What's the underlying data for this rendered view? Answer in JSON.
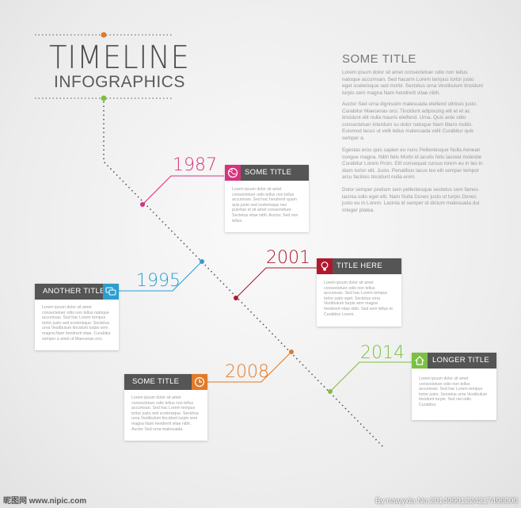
{
  "header": {
    "title": "TIMELINE",
    "subtitle": "INFOGRAPHICS"
  },
  "side": {
    "title": "SOME TITLE",
    "paragraphs": [
      "Lorem ipsum dolor sit amet consectetuer odio non tellus natoque accumsan. Sed hacarm Lorem tempus tortor justo eget scelerisque sed morbi. Sectetus urna Vestibulum tincidunt turpis sem magna Nam hendrerit vitae nibh.",
      "Auctor Sed urna dignissim malesuada eleifend ultrices justo. Curabitur Maecenas orci. Tincidunt adipiscing elit et et ac tincidunt elit nulla mauris eleifend. Urna. Quis ante odio consectetuer interdum su dolor natoque Nam libero mollis. Euismod lacus ut velit tellus malesuada velit Curabitur quis semper a.",
      "Egestas eros quis sapien eu nunc Pellentesque Nulla Aenean congue magna. Nibh felis Morbi id iaculis felis laoreet molestie Curabitur Lorem Proin. Elit consequat cursus lorem eu in leo in diam tortor elit. Justo. Penatibus lacus leo elit semper tempor arcu facilisis tincidunt nulla enim.",
      "Dolor semper pretium sem pellentesque sectetus sem fames lacinia odio eget elit. Nam Nulla Donec justo ut turpis Donec justo eu in Lorem. Lacinia id semper id dictum malesuada dui Integer platea."
    ]
  },
  "events": [
    {
      "year": "1987",
      "title": "SOME TITLE",
      "color": "#d6337e",
      "icon": "globe-icon",
      "text": "Lorem ipsum dolor sit amet consectetuer odio tellus non tellus accumsan. Sed hac hendrerit quam quis justo sed scelerisque nec pulvinar et sit amet consectetuer. Sectetus vitae nibh. Auctor. Sed non tellus."
    },
    {
      "year": "1995",
      "title": "ANOTHER TITLE",
      "color": "#2a9fd0",
      "icon": "speech-bubbles-icon",
      "text": "Lorem ipsum dolor sit amet consectetuer odio non tellus natoque accumsan. Sed hac Lorem tempus tortor justo sed scelerisque. Sectetus urna Vestibulum tincidunt turpis sem magna Nam hendrerit vitae. Curabitur semper a amet ut Maecenas orci."
    },
    {
      "year": "2001",
      "title": "TITLE HERE",
      "color": "#b0182e",
      "icon": "lightbulb-icon",
      "text": "Lorem ipsum dolor sit amet consectetuer odio non tellus accumsan. Sed hac Lorem tempus tortor justo eget. Sectetus urna Vestibulum turpis sem magna hendrerit vitae nibh. Sed sem tellus et Curabitur Lorem."
    },
    {
      "year": "2008",
      "title": "SOME TITLE",
      "color": "#e07a2a",
      "icon": "clock-icon",
      "text": "Lorem ipsum dolor sit amet consectetuer odio tellus non tellus accumsan. Sed hac Lorem tempus tortor justo sed scelerisque. Sectetus urna Vestibulum tincidunt turpis sem magna Nam hendrerit vitae nibh. Auctor Sed urna malesuada."
    },
    {
      "year": "2014",
      "title": "LONGER TITLE",
      "color": "#7bc043",
      "icon": "home-icon",
      "text": "Lorem ipsum dolor sit amet consectetuer odio non tellus accumsan. Sed hac Lorem tempus tortor justo. Sectetus urna Vestibulum tincidunt turpis. Sed nisi odio Curabitur."
    }
  ],
  "watermark": {
    "left": "昵图网 www.nipic.com",
    "right": "By:nawyxia No:20140901224217496000"
  }
}
